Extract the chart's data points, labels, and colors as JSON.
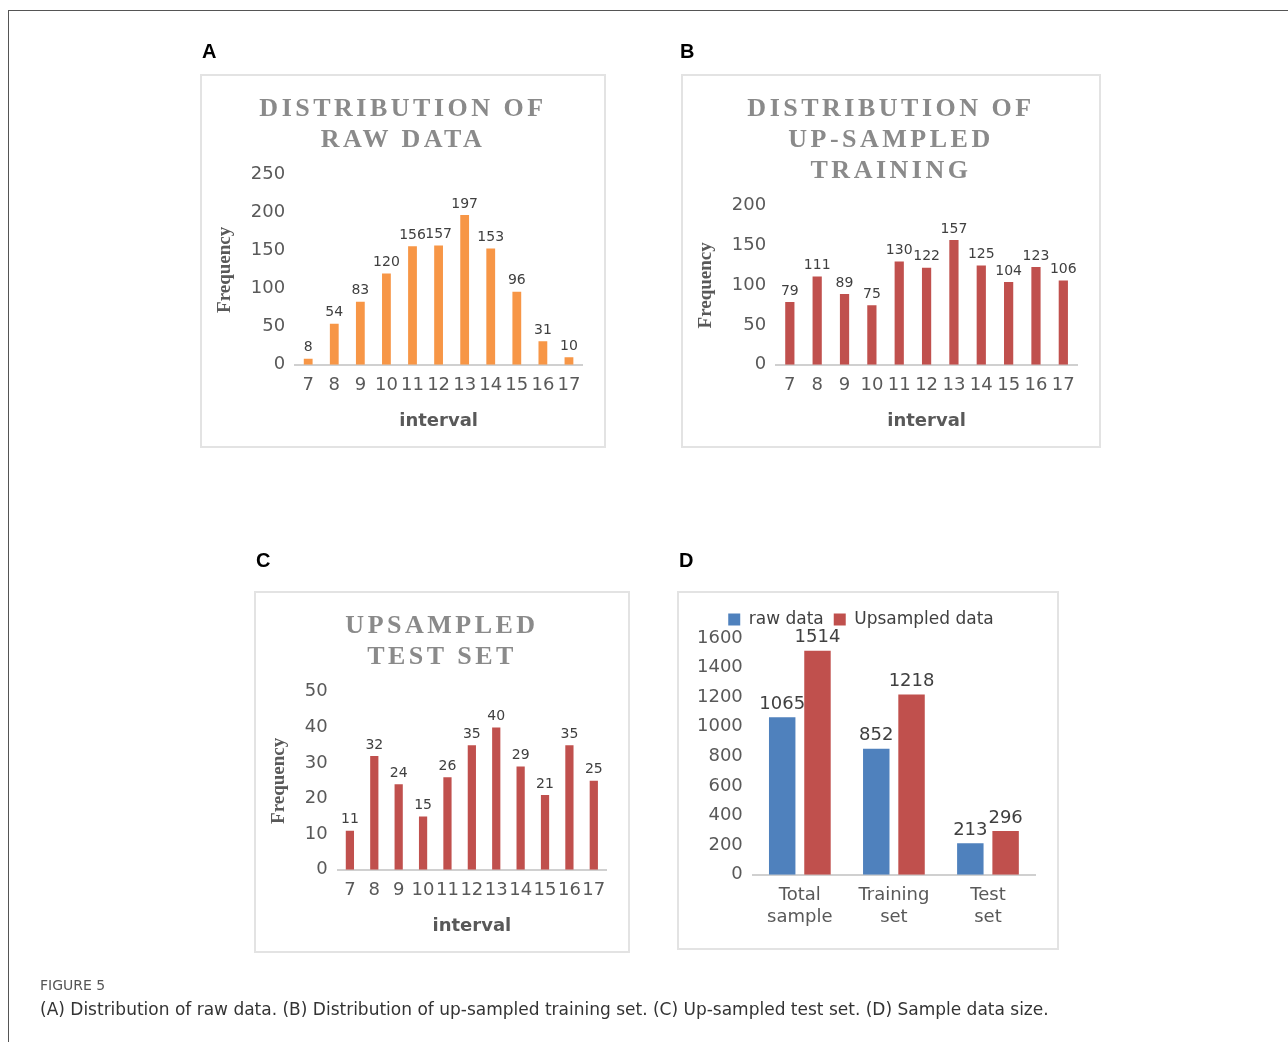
{
  "chart_data": [
    {
      "type": "bar",
      "title": "DISTRIBUTION OF RAW DATA",
      "xlabel": "interval",
      "ylabel": "Frequency",
      "categories": [
        "7",
        "8",
        "9",
        "10",
        "11",
        "12",
        "13",
        "14",
        "15",
        "16",
        "17"
      ],
      "values": [
        8,
        54,
        83,
        120,
        156,
        157,
        197,
        153,
        96,
        31,
        10
      ],
      "color": "#f79646",
      "ylim": [
        0,
        250
      ],
      "yticks": [
        0,
        50,
        100,
        150,
        200,
        250
      ],
      "grid": false,
      "data_labels": true,
      "legend": false,
      "annotations": [
        "A"
      ]
    },
    {
      "type": "bar",
      "title": "DISTRIBUTION OF UP-SAMPLED TRAINING",
      "xlabel": "interval",
      "ylabel": "Frequency",
      "categories": [
        "7",
        "8",
        "9",
        "10",
        "11",
        "12",
        "13",
        "14",
        "15",
        "16",
        "17"
      ],
      "values": [
        79,
        111,
        89,
        75,
        130,
        122,
        157,
        125,
        104,
        123,
        106
      ],
      "color": "#c0504d",
      "ylim": [
        0,
        200
      ],
      "yticks": [
        0,
        50,
        100,
        150,
        200
      ],
      "grid": false,
      "data_labels": true,
      "legend": false,
      "annotations": [
        "B"
      ]
    },
    {
      "type": "bar",
      "title": "UPSAMPLED TEST SET",
      "xlabel": "interval",
      "ylabel": "Frequency",
      "categories": [
        "7",
        "8",
        "9",
        "10",
        "11",
        "12",
        "13",
        "14",
        "15",
        "16",
        "17"
      ],
      "values": [
        11,
        32,
        24,
        15,
        26,
        35,
        40,
        29,
        21,
        35,
        25
      ],
      "color": "#c0504d",
      "ylim": [
        0,
        50
      ],
      "yticks": [
        0,
        10,
        20,
        30,
        40,
        50
      ],
      "grid": false,
      "data_labels": true,
      "legend": false,
      "annotations": [
        "C"
      ]
    },
    {
      "type": "bar",
      "categories": [
        "Total sample",
        "Training set",
        "Test set"
      ],
      "series": [
        {
          "name": "raw data",
          "color": "#4f81bd",
          "values": [
            1065,
            852,
            213
          ]
        },
        {
          "name": "Upsampled data",
          "color": "#c0504d",
          "values": [
            1514,
            1218,
            296
          ]
        }
      ],
      "ylim": [
        0,
        1600
      ],
      "yticks": [
        0,
        200,
        400,
        600,
        800,
        1000,
        1200,
        1400,
        1600
      ],
      "grid": false,
      "data_labels": true,
      "legend": "top",
      "annotations": [
        "D",
        "FIGURE 5",
        "(A) Distribution of raw data. (B) Distribution of up-sampled training set. (C) Up-sampled test set. (D) Sample data size."
      ]
    }
  ]
}
